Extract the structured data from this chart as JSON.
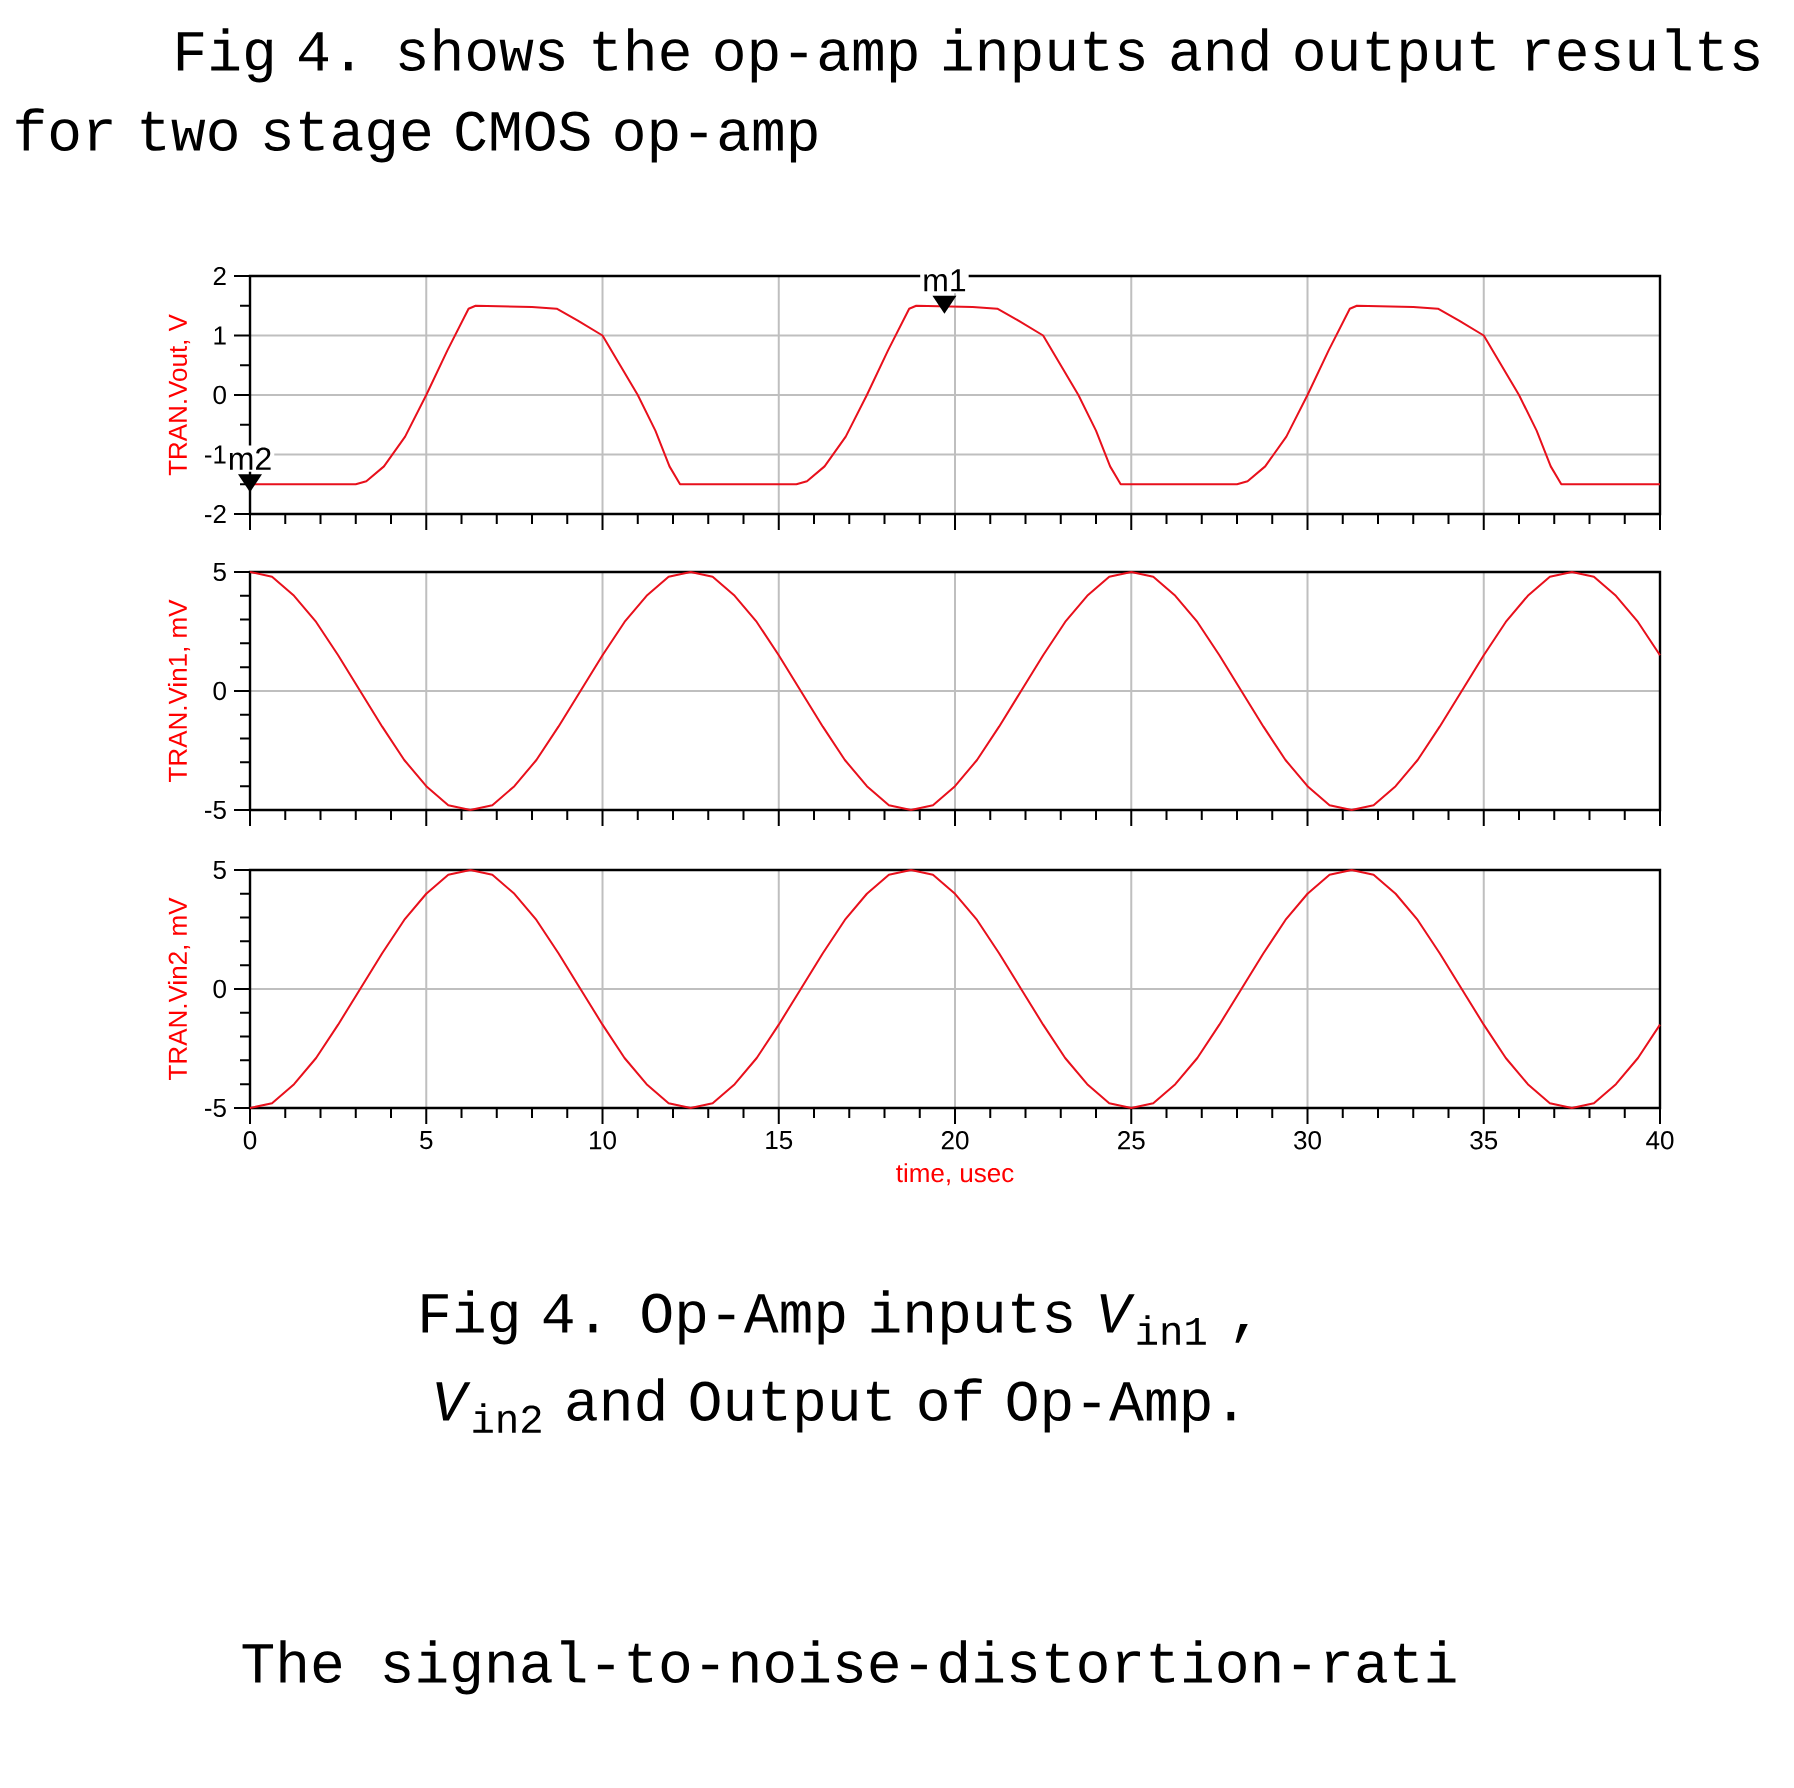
{
  "chart_data": [
    {
      "type": "line",
      "title": "Fig 4. shows the op-amp inputs and output results for two stage CMOS op-amp",
      "ylabel": "TRAN.Vout, V",
      "x": [
        0,
        3.0,
        3.3,
        3.8,
        4.4,
        5.0,
        5.6,
        6.2,
        6.4,
        8.0,
        8.7,
        9.3,
        10.0,
        10.5,
        11.0,
        11.5,
        11.9,
        12.2,
        15.5,
        15.8,
        16.3,
        16.9,
        17.5,
        18.1,
        18.7,
        18.9,
        20.5,
        21.2,
        21.8,
        22.5,
        23.0,
        23.5,
        24.0,
        24.4,
        24.7,
        28.0,
        28.3,
        28.8,
        29.4,
        30.0,
        30.6,
        31.2,
        31.4,
        33.0,
        33.7,
        34.3,
        35.0,
        35.5,
        36.0,
        36.5,
        36.9,
        37.2,
        40
      ],
      "series": [
        {
          "color": "#e8101c",
          "values": [
            -1.5,
            -1.5,
            -1.45,
            -1.2,
            -0.7,
            0,
            0.75,
            1.45,
            1.5,
            1.48,
            1.45,
            1.25,
            1.0,
            0.5,
            0,
            -0.6,
            -1.2,
            -1.5,
            -1.5,
            -1.45,
            -1.2,
            -0.7,
            0,
            0.75,
            1.45,
            1.5,
            1.48,
            1.45,
            1.25,
            1.0,
            0.5,
            0,
            -0.6,
            -1.2,
            -1.5,
            -1.5,
            -1.45,
            -1.2,
            -0.7,
            0,
            0.75,
            1.45,
            1.5,
            1.48,
            1.45,
            1.25,
            1.0,
            0.5,
            0,
            -0.6,
            -1.2,
            -1.5,
            -1.5
          ]
        }
      ],
      "annotations": [
        {
          "text": "m1",
          "x": 19.7,
          "y": 1.5
        },
        {
          "text": "m2",
          "x": 0,
          "y": -1.5
        }
      ],
      "xlim": [
        0,
        40
      ],
      "xticks": [
        0,
        5,
        10,
        15,
        20,
        25,
        30,
        35,
        40
      ],
      "ylim": [
        -2,
        2
      ],
      "yticks": [
        -2,
        -1,
        0,
        1,
        2
      ],
      "grid": true,
      "tick_labels": "y"
    },
    {
      "type": "line",
      "ylabel": "TRAN.Vin1, mV",
      "x": [
        0,
        0.625,
        1.25,
        1.875,
        2.5,
        3.125,
        3.75,
        4.375,
        5,
        5.625,
        6.25,
        6.875,
        7.5,
        8.125,
        8.75,
        9.375,
        10,
        10.625,
        11.25,
        11.875,
        12.5,
        13.125,
        13.75,
        14.375,
        15,
        15.625,
        16.25,
        16.875,
        17.5,
        18.125,
        18.75,
        19.375,
        20,
        20.625,
        21.25,
        21.875,
        22.5,
        23.125,
        23.75,
        24.375,
        25,
        25.625,
        26.25,
        26.875,
        27.5,
        28.125,
        28.75,
        29.375,
        30,
        30.625,
        31.25,
        31.875,
        32.5,
        33.125,
        33.75,
        34.375,
        35,
        35.625,
        36.25,
        36.875,
        37.5,
        38.125,
        38.75,
        39.375,
        40
      ],
      "series": [
        {
          "color": "#e8101c",
          "values": [
            5,
            4.8,
            4,
            2.9,
            1.5,
            0,
            -1.5,
            -2.9,
            -4,
            -4.8,
            -5,
            -4.8,
            -4,
            -2.9,
            -1.5,
            0,
            1.5,
            2.9,
            4,
            4.8,
            5,
            4.8,
            4,
            2.9,
            1.5,
            0,
            -1.5,
            -2.9,
            -4,
            -4.8,
            -5,
            -4.8,
            -4,
            -2.9,
            -1.5,
            0,
            1.5,
            2.9,
            4,
            4.8,
            5,
            4.8,
            4,
            2.9,
            1.5,
            0,
            -1.5,
            -2.9,
            -4,
            -4.8,
            -5,
            -4.8,
            -4,
            -2.9,
            -1.5,
            0,
            1.5,
            2.9,
            4,
            4.8,
            5,
            4.8,
            4,
            2.9,
            1.5
          ]
        }
      ],
      "xlim": [
        0,
        40
      ],
      "xticks": [
        0,
        5,
        10,
        15,
        20,
        25,
        30,
        35,
        40
      ],
      "ylim": [
        -5,
        5
      ],
      "yticks": [
        -5,
        0,
        5
      ],
      "grid": true,
      "tick_labels": "y"
    },
    {
      "type": "line",
      "ylabel": "TRAN.Vin2, mV",
      "xlabel": "time, usec",
      "x": [
        0,
        0.625,
        1.25,
        1.875,
        2.5,
        3.125,
        3.75,
        4.375,
        5,
        5.625,
        6.25,
        6.875,
        7.5,
        8.125,
        8.75,
        9.375,
        10,
        10.625,
        11.25,
        11.875,
        12.5,
        13.125,
        13.75,
        14.375,
        15,
        15.625,
        16.25,
        16.875,
        17.5,
        18.125,
        18.75,
        19.375,
        20,
        20.625,
        21.25,
        21.875,
        22.5,
        23.125,
        23.75,
        24.375,
        25,
        25.625,
        26.25,
        26.875,
        27.5,
        28.125,
        28.75,
        29.375,
        30,
        30.625,
        31.25,
        31.875,
        32.5,
        33.125,
        33.75,
        34.375,
        35,
        35.625,
        36.25,
        36.875,
        37.5,
        38.125,
        38.75,
        39.375,
        40
      ],
      "series": [
        {
          "color": "#e8101c",
          "values": [
            -5,
            -4.8,
            -4,
            -2.9,
            -1.5,
            0,
            1.5,
            2.9,
            4,
            4.8,
            5,
            4.8,
            4,
            2.9,
            1.5,
            0,
            -1.5,
            -2.9,
            -4,
            -4.8,
            -5,
            -4.8,
            -4,
            -2.9,
            -1.5,
            0,
            1.5,
            2.9,
            4,
            4.8,
            5,
            4.8,
            4,
            2.9,
            1.5,
            0,
            -1.5,
            -2.9,
            -4,
            -4.8,
            -5,
            -4.8,
            -4,
            -2.9,
            -1.5,
            0,
            1.5,
            2.9,
            4,
            4.8,
            5,
            4.8,
            4,
            2.9,
            1.5,
            0,
            -1.5,
            -2.9,
            -4,
            -4.8,
            -5,
            -4.8,
            -4,
            -2.9,
            -1.5
          ]
        }
      ],
      "annotations": [
        "Fig 4. Op-Amp inputs *V*$_{in1}$ , *V*$_{in2}$ and Output of Op-Amp.",
        "The  signal-to-noise-distortion-rati"
      ],
      "xlim": [
        0,
        40
      ],
      "xticks": [
        0,
        5,
        10,
        15,
        20,
        25,
        30,
        35,
        40
      ],
      "ylim": [
        -5,
        5
      ],
      "yticks": [
        -5,
        0,
        5
      ],
      "grid": true
    }
  ]
}
